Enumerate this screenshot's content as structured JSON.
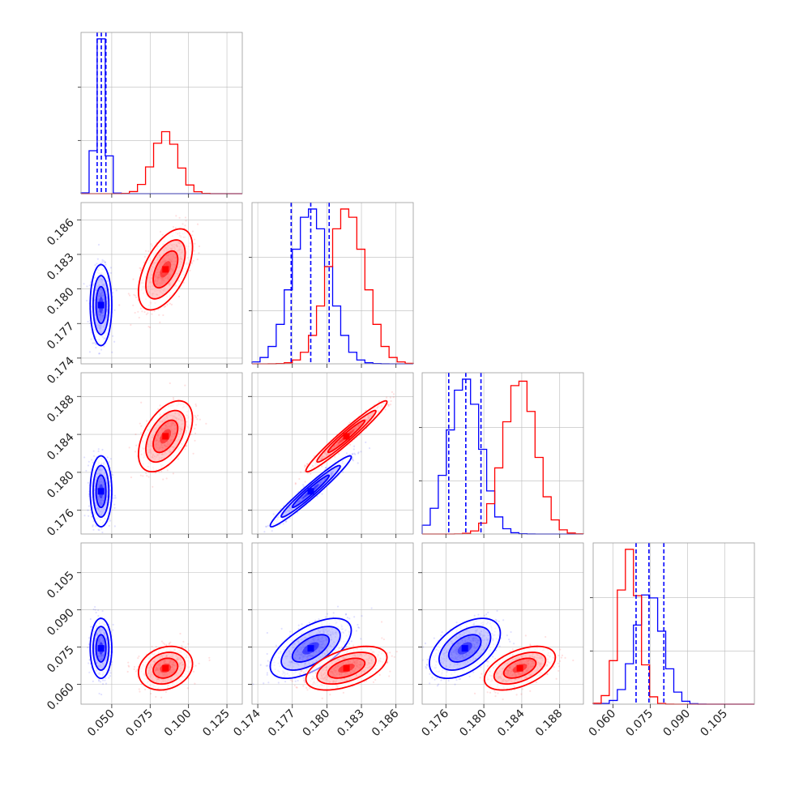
{
  "chart_data": {
    "type": "corner",
    "title": "",
    "colors": {
      "blue": "#0000ff",
      "red": "#ff0000"
    },
    "series_colors": [
      "blue",
      "red"
    ],
    "grid": true,
    "params": [
      {
        "range": [
          0.03,
          0.135
        ],
        "ticks": [
          0.05,
          0.075,
          0.1,
          0.125
        ],
        "tick_labels": [
          "0.050",
          "0.075",
          "0.100",
          "0.125"
        ]
      },
      {
        "range": [
          0.1735,
          0.1875
        ],
        "ticks": [
          0.174,
          0.177,
          0.18,
          0.183,
          0.186
        ],
        "tick_labels": [
          "0.174",
          "0.177",
          "0.180",
          "0.183",
          "0.186"
        ]
      },
      {
        "range": [
          0.1735,
          0.1905
        ],
        "ticks": [
          0.176,
          0.18,
          0.184,
          0.188
        ],
        "tick_labels": [
          "0.176",
          "0.180",
          "0.184",
          "0.188"
        ]
      },
      {
        "range": [
          0.052,
          0.117
        ],
        "ticks": [
          0.06,
          0.075,
          0.09,
          0.105
        ],
        "tick_labels": [
          "0.060",
          "0.075",
          "0.090",
          "0.105"
        ]
      }
    ],
    "posteriors": [
      {
        "series": "blue",
        "mean": [
          0.043,
          0.1786,
          0.178,
          0.0745
        ],
        "std": [
          0.0032,
          0.0016,
          0.0017,
          0.0055
        ],
        "corr": [
          [
            1,
            0,
            0,
            0
          ],
          [
            0,
            1,
            0.97,
            0.6
          ],
          [
            0,
            0.97,
            1,
            0.5
          ],
          [
            0,
            0.6,
            0.5,
            1
          ]
        ]
      },
      {
        "series": "red",
        "mean": [
          0.085,
          0.1817,
          0.1838,
          0.0665
        ],
        "std": [
          0.008,
          0.0016,
          0.0017,
          0.004
        ],
        "corr": [
          [
            1,
            0.55,
            0.5,
            0.2
          ],
          [
            0.55,
            1,
            0.97,
            0.5
          ],
          [
            0.5,
            0.97,
            1,
            0.5
          ],
          [
            0.2,
            0.5,
            0.5,
            1
          ]
        ]
      }
    ],
    "quantile_lines": {
      "series": "blue",
      "values": [
        [
          0.0405,
          0.0432,
          0.0462
        ],
        [
          0.1769,
          0.1786,
          0.1802
        ],
        [
          0.1763,
          0.1781,
          0.1797
        ],
        [
          0.0693,
          0.0745,
          0.0805
        ]
      ]
    }
  }
}
